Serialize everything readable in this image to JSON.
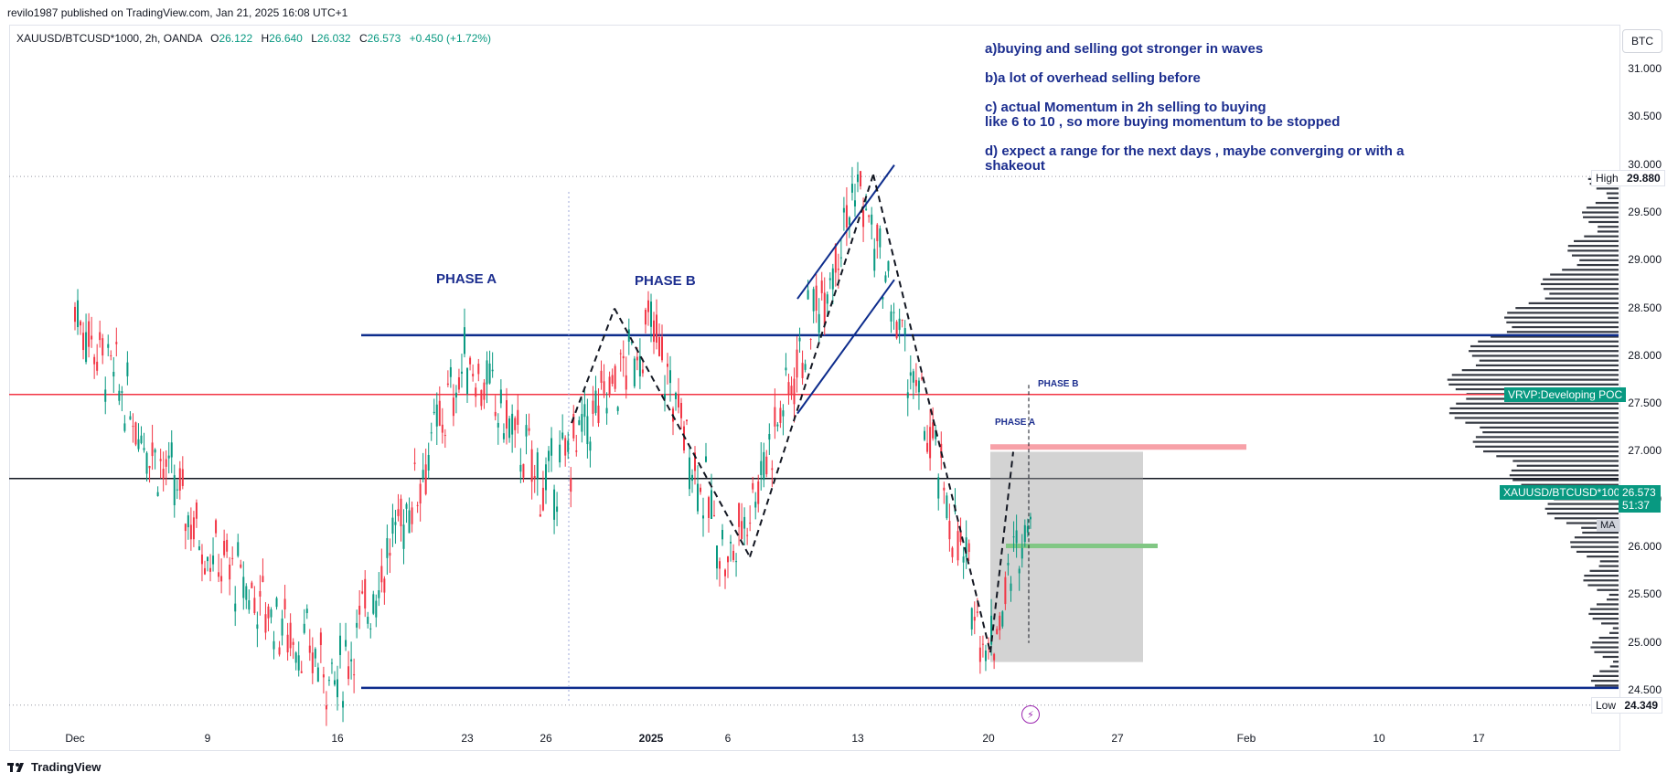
{
  "publisher_line": "revilo1987 published on TradingView.com, Jan 21, 2025 16:08 UTC+1",
  "legend": {
    "symbol": "XAUUSD/BTCUSD*1000, 2h, OANDA",
    "open_label": "O",
    "open": "26.122",
    "high_label": "H",
    "high": "26.640",
    "low_label": "L",
    "low": "26.032",
    "close_label": "C",
    "close": "26.573",
    "change": "+0.450 (+1.72%)"
  },
  "notes": [
    "a)buying and selling got stronger in waves",
    "b)a lot of overhead selling before",
    "c) actual Momentum in 2h selling to buying\nlike 6 to 10 , so more buying momentum to be stopped",
    "d) expect a range for the next days , maybe converging or with a\nshakeout"
  ],
  "btc_button": "BTC",
  "annotations": {
    "phase_a": "PHASE A",
    "phase_b": "PHASE B",
    "phase_a_small": "PHASE A",
    "phase_b_small": "PHASE B"
  },
  "price_tags": {
    "high_label": "High",
    "high_value": "29.880",
    "low_label": "Low",
    "low_value": "24.349",
    "poc_label": "VRVP:Developing POC",
    "symbol_label": "XAUUSD/BTCUSD*1000",
    "last_price": "26.573",
    "countdown": "51:37",
    "ma_label": "MA"
  },
  "footer": "TradingView",
  "colors": {
    "up": "#089981",
    "down": "#f23645",
    "navy": "#0d2c8c",
    "poc_line": "#f23645",
    "price_line": "#131722",
    "tag_green": "#089981",
    "poc_tag": "#089981"
  },
  "chart_data": {
    "type": "candlestick",
    "x_tick_labels": [
      "Dec",
      "9",
      "16",
      "23",
      "26",
      "2025",
      "6",
      "13",
      "20",
      "27",
      "Feb",
      "10",
      "17"
    ],
    "y_tick_labels": [
      "31.000",
      "30.500",
      "30.000",
      "29.500",
      "29.000",
      "28.500",
      "28.000",
      "27.500",
      "27.000",
      "26.500",
      "26.000",
      "25.500",
      "25.000",
      "24.500"
    ],
    "ylim": [
      24.2,
      31.3
    ],
    "horizontal_lines": [
      {
        "price": 28.22,
        "color": "navy"
      },
      {
        "price": 27.6,
        "color": "red"
      },
      {
        "price": 26.72,
        "color": "black"
      },
      {
        "price": 24.53,
        "color": "navy"
      },
      {
        "price": 29.88,
        "style": "dotted"
      },
      {
        "price": 24.349,
        "style": "dotted"
      }
    ],
    "price_path": [
      [
        "Dec",
        28.5
      ],
      [
        "9",
        26.0
      ],
      [
        "16",
        24.6
      ],
      [
        "23",
        28.0
      ],
      [
        "26",
        26.6
      ],
      [
        "2025",
        28.3
      ],
      [
        "6",
        25.8
      ],
      [
        "13",
        29.8
      ],
      [
        "20",
        24.9
      ],
      [
        "20",
        26.57
      ]
    ],
    "range_box": {
      "from_price": 27.0,
      "to_price": 24.8
    },
    "volume_profile_poc": 27.6
  }
}
